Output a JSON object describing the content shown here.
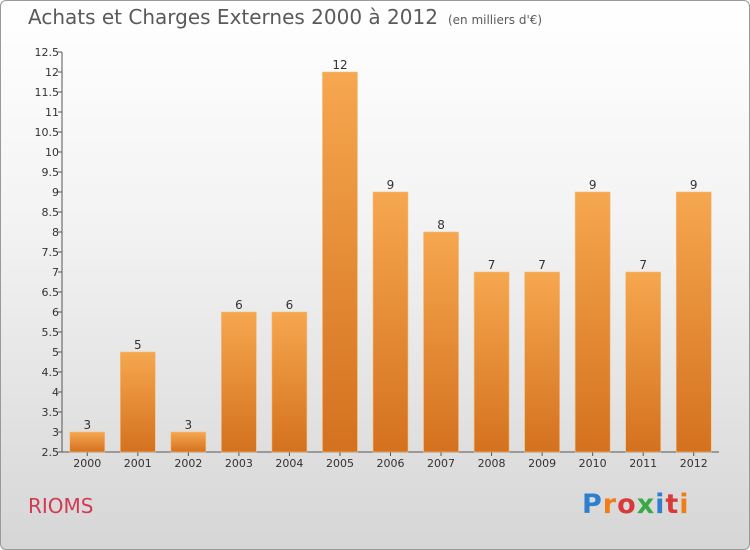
{
  "header": {
    "title": "Achats et Charges Externes 2000 à 2012",
    "subtitle": "(en milliers d'€)"
  },
  "footer": {
    "commune": "RIOMS",
    "logo": "Proxiti"
  },
  "colors": {
    "bar_top": "#f6a74f",
    "bar_bottom": "#d4711f",
    "commune": "#d03a52",
    "logo": [
      "#2f7fd0",
      "#f07d16",
      "#d83a3a",
      "#39a944",
      "#2f7fd0",
      "#d83a3a",
      "#f07d16"
    ]
  },
  "chart_data": {
    "type": "bar",
    "title": "Achats et Charges Externes 2000 à 2012",
    "subtitle": "(en milliers d'€)",
    "xlabel": "",
    "ylabel": "",
    "categories": [
      "2000",
      "2001",
      "2002",
      "2003",
      "2004",
      "2005",
      "2006",
      "2007",
      "2008",
      "2009",
      "2010",
      "2011",
      "2012"
    ],
    "values": [
      3,
      5,
      3,
      6,
      6,
      12,
      9,
      8,
      7,
      7,
      9,
      7,
      9
    ],
    "ylim": [
      2.5,
      12.5
    ],
    "yticks": [
      "2.5",
      "3",
      "3.5",
      "4",
      "4.5",
      "5",
      "5.5",
      "6",
      "6.5",
      "7",
      "7.5",
      "8",
      "8.5",
      "9",
      "9.5",
      "10",
      "10.5",
      "11",
      "11.5",
      "12",
      "12.5"
    ],
    "grid": false,
    "legend": "none"
  }
}
